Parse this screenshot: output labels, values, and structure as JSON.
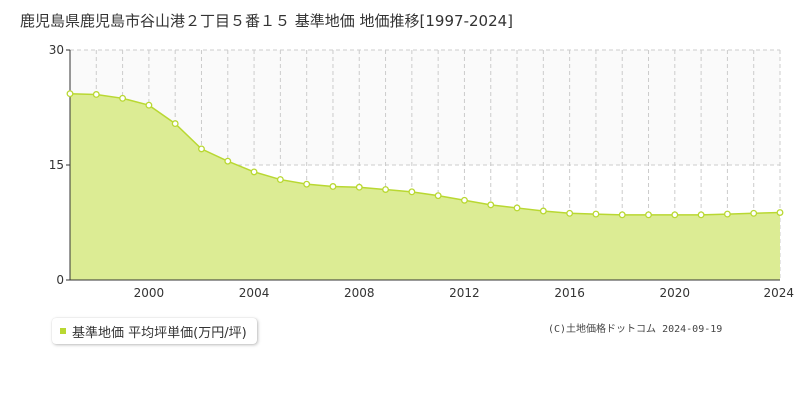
{
  "chart_data": {
    "type": "area",
    "title": "鹿児島県鹿児島市谷山港２丁目５番１５ 基準地価 地価推移[1997-2024]",
    "xlabel": "",
    "ylabel": "",
    "x_range": [
      1997,
      2024
    ],
    "ylim": [
      0,
      30
    ],
    "y_ticks": [
      0,
      15,
      30
    ],
    "x_ticks": [
      2000,
      2004,
      2008,
      2012,
      2016,
      2020,
      2024
    ],
    "grid": true,
    "legend_position": "bottom-left",
    "series": [
      {
        "name": "基準地価 平均坪単価(万円/坪)",
        "color": "#b9d832",
        "fill": "#dcec94",
        "x": [
          1997,
          1998,
          1999,
          2000,
          2001,
          2002,
          2003,
          2004,
          2005,
          2006,
          2007,
          2008,
          2009,
          2010,
          2011,
          2012,
          2013,
          2014,
          2015,
          2016,
          2017,
          2018,
          2019,
          2020,
          2021,
          2022,
          2023,
          2024
        ],
        "values": [
          24.3,
          24.2,
          23.7,
          22.8,
          20.4,
          17.1,
          15.5,
          14.1,
          13.1,
          12.5,
          12.2,
          12.1,
          11.8,
          11.5,
          11.0,
          10.4,
          9.8,
          9.4,
          9.0,
          8.7,
          8.6,
          8.5,
          8.5,
          8.5,
          8.5,
          8.6,
          8.7,
          8.8
        ]
      }
    ]
  },
  "legend": {
    "label": "基準地価 平均坪単価(万円/坪)"
  },
  "copyright": "(C)土地価格ドットコム 2024-09-19"
}
